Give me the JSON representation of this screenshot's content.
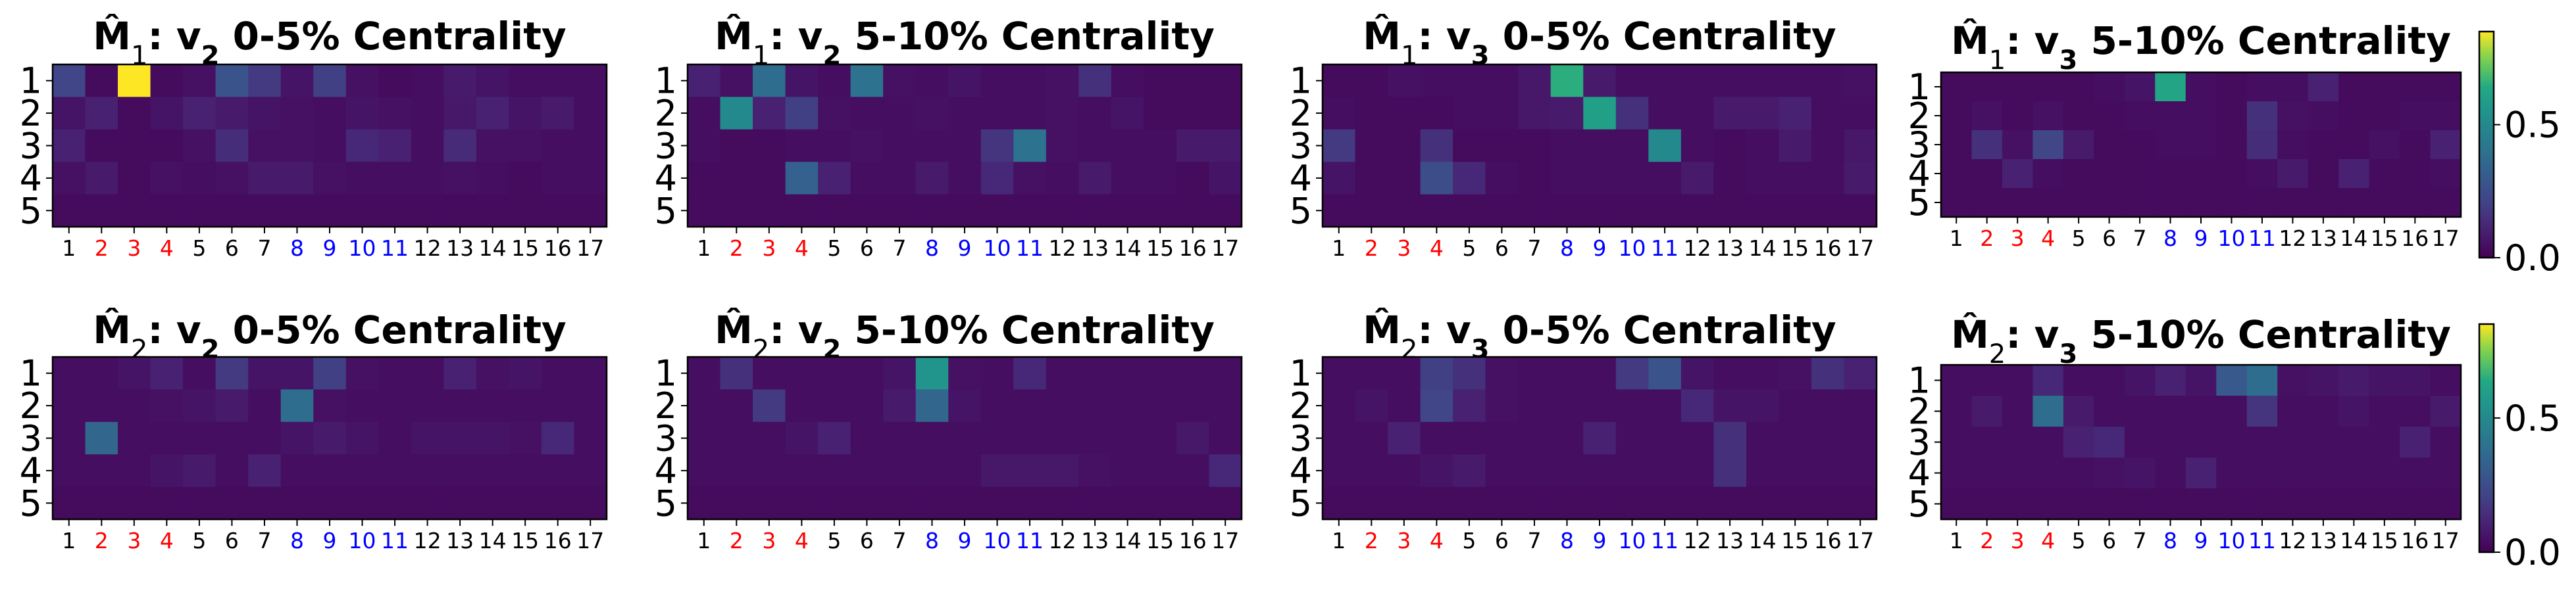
{
  "colors": {
    "default_tick": "#000000",
    "red_tick": "#ff0000",
    "blue_tick": "#0000ff",
    "colormap": "viridis"
  },
  "chart_data": [
    {
      "type": "heatmap",
      "title": "M̂1: v2 0-5% Centrality",
      "title_parts": {
        "m": "M",
        "sub": "1",
        "v": "v",
        "vsub": "2",
        "rest": " 0-5% Centrality"
      },
      "rows": [
        "1",
        "2",
        "3",
        "4",
        "5"
      ],
      "columns": [
        "1",
        "2",
        "3",
        "4",
        "5",
        "6",
        "7",
        "8",
        "9",
        "10",
        "11",
        "12",
        "13",
        "14",
        "15",
        "16",
        "17"
      ],
      "red_columns": [
        "2",
        "3",
        "4"
      ],
      "blue_columns": [
        "8",
        "9",
        "10",
        "11"
      ],
      "value_range": [
        0,
        0.85
      ],
      "values": [
        [
          0.22,
          0.03,
          0.85,
          0.03,
          0.05,
          0.28,
          0.18,
          0.06,
          0.2,
          0.05,
          0.03,
          0.04,
          0.08,
          0.06,
          0.04,
          0.04,
          0.04
        ],
        [
          0.06,
          0.1,
          0.03,
          0.06,
          0.1,
          0.08,
          0.06,
          0.05,
          0.04,
          0.06,
          0.05,
          0.04,
          0.07,
          0.1,
          0.06,
          0.08,
          0.04
        ],
        [
          0.1,
          0.03,
          0.03,
          0.03,
          0.05,
          0.14,
          0.05,
          0.05,
          0.04,
          0.12,
          0.1,
          0.04,
          0.13,
          0.05,
          0.05,
          0.04,
          0.04
        ],
        [
          0.05,
          0.08,
          0.03,
          0.05,
          0.04,
          0.05,
          0.08,
          0.08,
          0.05,
          0.04,
          0.04,
          0.04,
          0.05,
          0.04,
          0.03,
          0.04,
          0.04
        ],
        [
          0.03,
          0.03,
          0.03,
          0.03,
          0.03,
          0.03,
          0.03,
          0.03,
          0.03,
          0.03,
          0.03,
          0.03,
          0.03,
          0.03,
          0.03,
          0.03,
          0.03
        ]
      ]
    },
    {
      "type": "heatmap",
      "title": "M̂1: v2 5-10% Centrality",
      "title_parts": {
        "m": "M",
        "sub": "1",
        "v": "v",
        "vsub": "2",
        "rest": " 5-10% Centrality"
      },
      "rows": [
        "1",
        "2",
        "3",
        "4",
        "5"
      ],
      "columns": [
        "1",
        "2",
        "3",
        "4",
        "5",
        "6",
        "7",
        "8",
        "9",
        "10",
        "11",
        "12",
        "13",
        "14",
        "15",
        "16",
        "17"
      ],
      "red_columns": [
        "2",
        "3",
        "4"
      ],
      "blue_columns": [
        "8",
        "9",
        "10",
        "11"
      ],
      "value_range": [
        0,
        0.85
      ],
      "values": [
        [
          0.1,
          0.05,
          0.38,
          0.06,
          0.04,
          0.4,
          0.05,
          0.04,
          0.06,
          0.04,
          0.04,
          0.05,
          0.15,
          0.04,
          0.03,
          0.03,
          0.03
        ],
        [
          0.04,
          0.5,
          0.1,
          0.2,
          0.05,
          0.04,
          0.04,
          0.05,
          0.04,
          0.04,
          0.04,
          0.05,
          0.04,
          0.06,
          0.03,
          0.03,
          0.03
        ],
        [
          0.04,
          0.03,
          0.03,
          0.04,
          0.04,
          0.05,
          0.04,
          0.04,
          0.04,
          0.16,
          0.4,
          0.05,
          0.04,
          0.04,
          0.04,
          0.08,
          0.08
        ],
        [
          0.03,
          0.03,
          0.03,
          0.33,
          0.1,
          0.04,
          0.04,
          0.08,
          0.04,
          0.12,
          0.05,
          0.04,
          0.08,
          0.04,
          0.04,
          0.03,
          0.06
        ],
        [
          0.03,
          0.03,
          0.03,
          0.03,
          0.03,
          0.03,
          0.03,
          0.03,
          0.03,
          0.03,
          0.03,
          0.03,
          0.03,
          0.03,
          0.03,
          0.03,
          0.03
        ]
      ]
    },
    {
      "type": "heatmap",
      "title": "M̂1: v3 0-5% Centrality",
      "title_parts": {
        "m": "M",
        "sub": "1",
        "v": "v",
        "vsub": "3",
        "rest": " 0-5% Centrality"
      },
      "rows": [
        "1",
        "2",
        "3",
        "4",
        "5"
      ],
      "columns": [
        "1",
        "2",
        "3",
        "4",
        "5",
        "6",
        "7",
        "8",
        "9",
        "10",
        "11",
        "12",
        "13",
        "14",
        "15",
        "16",
        "17"
      ],
      "red_columns": [
        "2",
        "3",
        "4"
      ],
      "blue_columns": [
        "8",
        "9",
        "10",
        "11"
      ],
      "value_range": [
        0,
        0.85
      ],
      "values": [
        [
          0.03,
          0.03,
          0.05,
          0.04,
          0.04,
          0.04,
          0.07,
          0.65,
          0.08,
          0.04,
          0.04,
          0.04,
          0.04,
          0.04,
          0.04,
          0.04,
          0.05
        ],
        [
          0.04,
          0.03,
          0.03,
          0.03,
          0.04,
          0.04,
          0.07,
          0.08,
          0.6,
          0.15,
          0.04,
          0.04,
          0.08,
          0.08,
          0.1,
          0.04,
          0.04
        ],
        [
          0.18,
          0.03,
          0.03,
          0.15,
          0.03,
          0.03,
          0.03,
          0.04,
          0.04,
          0.04,
          0.5,
          0.04,
          0.03,
          0.04,
          0.08,
          0.04,
          0.07
        ],
        [
          0.06,
          0.03,
          0.03,
          0.25,
          0.12,
          0.04,
          0.03,
          0.04,
          0.04,
          0.04,
          0.04,
          0.08,
          0.03,
          0.04,
          0.04,
          0.04,
          0.08
        ],
        [
          0.03,
          0.03,
          0.03,
          0.03,
          0.03,
          0.03,
          0.03,
          0.03,
          0.03,
          0.03,
          0.03,
          0.03,
          0.03,
          0.03,
          0.03,
          0.03,
          0.03
        ]
      ]
    },
    {
      "type": "heatmap",
      "title": "M̂1: v3 5-10% Centrality",
      "title_parts": {
        "m": "M",
        "sub": "1",
        "v": "v",
        "vsub": "3",
        "rest": " 5-10% Centrality"
      },
      "rows": [
        "1",
        "2",
        "3",
        "4",
        "5"
      ],
      "columns": [
        "1",
        "2",
        "3",
        "4",
        "5",
        "6",
        "7",
        "8",
        "9",
        "10",
        "11",
        "12",
        "13",
        "14",
        "15",
        "16",
        "17"
      ],
      "red_columns": [
        "2",
        "3",
        "4"
      ],
      "blue_columns": [
        "8",
        "9",
        "10",
        "11"
      ],
      "value_range": [
        0,
        0.85
      ],
      "values": [
        [
          0.03,
          0.03,
          0.03,
          0.03,
          0.03,
          0.04,
          0.06,
          0.62,
          0.04,
          0.03,
          0.04,
          0.04,
          0.1,
          0.03,
          0.03,
          0.03,
          0.03
        ],
        [
          0.03,
          0.05,
          0.03,
          0.05,
          0.03,
          0.03,
          0.04,
          0.04,
          0.04,
          0.03,
          0.15,
          0.05,
          0.04,
          0.03,
          0.03,
          0.04,
          0.04
        ],
        [
          0.03,
          0.15,
          0.05,
          0.22,
          0.08,
          0.03,
          0.03,
          0.04,
          0.04,
          0.03,
          0.14,
          0.04,
          0.03,
          0.03,
          0.05,
          0.03,
          0.1
        ],
        [
          0.03,
          0.03,
          0.1,
          0.04,
          0.03,
          0.03,
          0.03,
          0.03,
          0.03,
          0.03,
          0.04,
          0.08,
          0.03,
          0.1,
          0.03,
          0.03,
          0.04
        ],
        [
          0.03,
          0.03,
          0.03,
          0.03,
          0.03,
          0.03,
          0.03,
          0.03,
          0.03,
          0.03,
          0.03,
          0.03,
          0.03,
          0.03,
          0.03,
          0.03,
          0.03
        ]
      ]
    },
    {
      "type": "heatmap",
      "title": "M̂2: v2 0-5% Centrality",
      "title_parts": {
        "m": "M",
        "sub": "2",
        "v": "v",
        "vsub": "2",
        "rest": " 0-5% Centrality"
      },
      "rows": [
        "1",
        "2",
        "3",
        "4",
        "5"
      ],
      "columns": [
        "1",
        "2",
        "3",
        "4",
        "5",
        "6",
        "7",
        "8",
        "9",
        "10",
        "11",
        "12",
        "13",
        "14",
        "15",
        "16",
        "17"
      ],
      "red_columns": [
        "2",
        "3",
        "4"
      ],
      "blue_columns": [
        "8",
        "9",
        "10",
        "11"
      ],
      "value_range": [
        0,
        0.85
      ],
      "values": [
        [
          0.04,
          0.04,
          0.06,
          0.1,
          0.04,
          0.18,
          0.06,
          0.06,
          0.2,
          0.05,
          0.04,
          0.04,
          0.1,
          0.05,
          0.06,
          0.04,
          0.04
        ],
        [
          0.04,
          0.04,
          0.04,
          0.05,
          0.06,
          0.08,
          0.04,
          0.38,
          0.05,
          0.04,
          0.04,
          0.04,
          0.04,
          0.04,
          0.04,
          0.04,
          0.04
        ],
        [
          0.04,
          0.35,
          0.04,
          0.04,
          0.04,
          0.04,
          0.04,
          0.06,
          0.08,
          0.06,
          0.04,
          0.06,
          0.06,
          0.06,
          0.05,
          0.12,
          0.04
        ],
        [
          0.04,
          0.04,
          0.04,
          0.06,
          0.08,
          0.04,
          0.1,
          0.04,
          0.04,
          0.04,
          0.04,
          0.04,
          0.04,
          0.04,
          0.04,
          0.04,
          0.04
        ],
        [
          0.03,
          0.03,
          0.03,
          0.03,
          0.03,
          0.03,
          0.03,
          0.03,
          0.03,
          0.03,
          0.03,
          0.03,
          0.03,
          0.03,
          0.03,
          0.03,
          0.03
        ]
      ]
    },
    {
      "type": "heatmap",
      "title": "M̂2: v2 5-10% Centrality",
      "title_parts": {
        "m": "M",
        "sub": "2",
        "v": "v",
        "vsub": "2",
        "rest": " 5-10% Centrality"
      },
      "rows": [
        "1",
        "2",
        "3",
        "4",
        "5"
      ],
      "columns": [
        "1",
        "2",
        "3",
        "4",
        "5",
        "6",
        "7",
        "8",
        "9",
        "10",
        "11",
        "12",
        "13",
        "14",
        "15",
        "16",
        "17"
      ],
      "red_columns": [
        "2",
        "3",
        "4"
      ],
      "blue_columns": [
        "8",
        "9",
        "10",
        "11"
      ],
      "value_range": [
        0,
        0.85
      ],
      "values": [
        [
          0.04,
          0.15,
          0.04,
          0.04,
          0.04,
          0.04,
          0.06,
          0.55,
          0.05,
          0.04,
          0.12,
          0.04,
          0.04,
          0.04,
          0.04,
          0.04,
          0.04
        ],
        [
          0.04,
          0.04,
          0.18,
          0.04,
          0.04,
          0.04,
          0.08,
          0.35,
          0.06,
          0.04,
          0.04,
          0.04,
          0.04,
          0.04,
          0.04,
          0.04,
          0.04
        ],
        [
          0.04,
          0.04,
          0.04,
          0.06,
          0.1,
          0.04,
          0.04,
          0.04,
          0.04,
          0.04,
          0.04,
          0.04,
          0.04,
          0.04,
          0.04,
          0.07,
          0.04
        ],
        [
          0.04,
          0.04,
          0.04,
          0.04,
          0.04,
          0.04,
          0.04,
          0.04,
          0.04,
          0.07,
          0.07,
          0.07,
          0.05,
          0.04,
          0.04,
          0.04,
          0.12
        ],
        [
          0.03,
          0.03,
          0.03,
          0.03,
          0.03,
          0.03,
          0.03,
          0.03,
          0.03,
          0.03,
          0.03,
          0.03,
          0.03,
          0.03,
          0.03,
          0.03,
          0.03
        ]
      ]
    },
    {
      "type": "heatmap",
      "title": "M̂2: v3 0-5% Centrality",
      "title_parts": {
        "m": "M",
        "sub": "2",
        "v": "v",
        "vsub": "3",
        "rest": " 0-5% Centrality"
      },
      "rows": [
        "1",
        "2",
        "3",
        "4",
        "5"
      ],
      "columns": [
        "1",
        "2",
        "3",
        "4",
        "5",
        "6",
        "7",
        "8",
        "9",
        "10",
        "11",
        "12",
        "13",
        "14",
        "15",
        "16",
        "17"
      ],
      "red_columns": [
        "2",
        "3",
        "4"
      ],
      "blue_columns": [
        "8",
        "9",
        "10",
        "11"
      ],
      "value_range": [
        0,
        0.85
      ],
      "values": [
        [
          0.04,
          0.04,
          0.04,
          0.2,
          0.15,
          0.05,
          0.04,
          0.04,
          0.04,
          0.18,
          0.28,
          0.06,
          0.04,
          0.04,
          0.05,
          0.15,
          0.1
        ],
        [
          0.04,
          0.06,
          0.04,
          0.22,
          0.1,
          0.05,
          0.04,
          0.04,
          0.04,
          0.04,
          0.04,
          0.12,
          0.06,
          0.06,
          0.04,
          0.04,
          0.04
        ],
        [
          0.04,
          0.04,
          0.1,
          0.04,
          0.04,
          0.04,
          0.04,
          0.04,
          0.1,
          0.04,
          0.04,
          0.04,
          0.15,
          0.04,
          0.04,
          0.04,
          0.04
        ],
        [
          0.04,
          0.04,
          0.04,
          0.06,
          0.08,
          0.04,
          0.04,
          0.04,
          0.04,
          0.04,
          0.04,
          0.04,
          0.15,
          0.04,
          0.04,
          0.04,
          0.04
        ],
        [
          0.03,
          0.03,
          0.03,
          0.03,
          0.03,
          0.03,
          0.03,
          0.03,
          0.03,
          0.03,
          0.03,
          0.03,
          0.03,
          0.03,
          0.03,
          0.03,
          0.03
        ]
      ]
    },
    {
      "type": "heatmap",
      "title": "M̂2: v3 5-10% Centrality",
      "title_parts": {
        "m": "M",
        "sub": "2",
        "v": "v",
        "vsub": "3",
        "rest": " 5-10% Centrality"
      },
      "rows": [
        "1",
        "2",
        "3",
        "4",
        "5"
      ],
      "columns": [
        "1",
        "2",
        "3",
        "4",
        "5",
        "6",
        "7",
        "8",
        "9",
        "10",
        "11",
        "12",
        "13",
        "14",
        "15",
        "16",
        "17"
      ],
      "red_columns": [
        "2",
        "3",
        "4"
      ],
      "blue_columns": [
        "8",
        "9",
        "10",
        "11"
      ],
      "value_range": [
        0,
        0.85
      ],
      "values": [
        [
          0.04,
          0.04,
          0.04,
          0.12,
          0.04,
          0.04,
          0.06,
          0.1,
          0.06,
          0.3,
          0.38,
          0.05,
          0.06,
          0.08,
          0.06,
          0.06,
          0.04
        ],
        [
          0.04,
          0.08,
          0.04,
          0.38,
          0.08,
          0.04,
          0.04,
          0.04,
          0.04,
          0.04,
          0.16,
          0.04,
          0.04,
          0.06,
          0.04,
          0.04,
          0.08
        ],
        [
          0.04,
          0.04,
          0.04,
          0.04,
          0.1,
          0.12,
          0.04,
          0.04,
          0.04,
          0.04,
          0.04,
          0.04,
          0.04,
          0.04,
          0.04,
          0.1,
          0.04
        ],
        [
          0.04,
          0.04,
          0.04,
          0.04,
          0.04,
          0.05,
          0.06,
          0.04,
          0.1,
          0.04,
          0.04,
          0.04,
          0.04,
          0.04,
          0.04,
          0.04,
          0.04
        ],
        [
          0.03,
          0.03,
          0.03,
          0.03,
          0.03,
          0.03,
          0.03,
          0.03,
          0.03,
          0.03,
          0.03,
          0.03,
          0.03,
          0.03,
          0.03,
          0.03,
          0.03
        ]
      ]
    }
  ],
  "colorbars": [
    {
      "ticks": [
        "0.5",
        "0.0"
      ],
      "tick_values": [
        0.5,
        0.0
      ],
      "range": [
        0,
        0.85
      ]
    },
    {
      "ticks": [
        "0.5",
        "0.0"
      ],
      "tick_values": [
        0.5,
        0.0
      ],
      "range": [
        0,
        0.85
      ]
    }
  ]
}
